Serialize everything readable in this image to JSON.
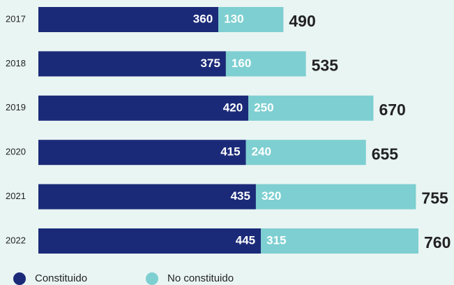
{
  "chart_data": {
    "type": "stacked-barh",
    "categories": [
      "2017",
      "2018",
      "2019",
      "2020",
      "2021",
      "2022"
    ],
    "series": [
      {
        "name": "Constituido",
        "color": "#1b2a78",
        "values": [
          360,
          375,
          420,
          415,
          435,
          445
        ]
      },
      {
        "name": "No constituido",
        "color": "#7ecfd1",
        "values": [
          130,
          160,
          250,
          240,
          320,
          315
        ]
      }
    ],
    "totals": [
      490,
      535,
      670,
      655,
      755,
      760
    ]
  }
}
